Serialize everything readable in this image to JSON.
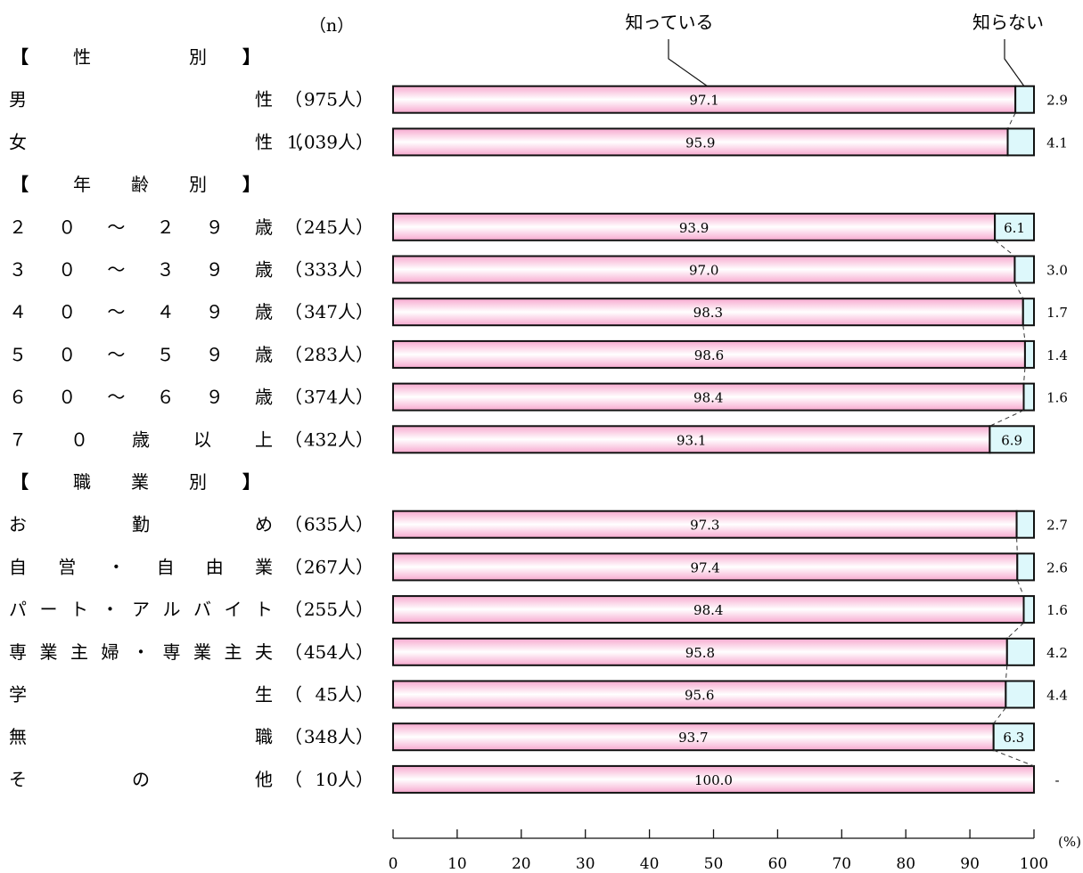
{
  "chart_data": {
    "type": "bar",
    "stacked": true,
    "orientation": "horizontal",
    "n_header": "（n）",
    "series_names": [
      "知っている",
      "知らない"
    ],
    "colors": {
      "know": "#f7a9cf",
      "know_light": "#ffffff",
      "dont": "#ddf8fb",
      "border": "#111111"
    },
    "x_axis": {
      "ticks": [
        0,
        10,
        20,
        30,
        40,
        50,
        60,
        70,
        80,
        90,
        100
      ],
      "unit": "(%)",
      "range": [
        0,
        100
      ]
    },
    "rows": [
      {
        "kind": "header",
        "label": "【性別】"
      },
      {
        "kind": "bar",
        "label": "男性",
        "n": "（ 975人）",
        "know": 97.1,
        "know_label": "97.1",
        "dont": 2.9,
        "dont_label": "2.9"
      },
      {
        "kind": "bar",
        "label": "女性",
        "n": "（1,039人）",
        "know": 95.9,
        "know_label": "95.9",
        "dont": 4.1,
        "dont_label": "4.1"
      },
      {
        "kind": "header",
        "label": "【年齢別】"
      },
      {
        "kind": "bar",
        "label": "２０～２９歳",
        "n": "（ 245人）",
        "know": 93.9,
        "know_label": "93.9",
        "dont": 6.1,
        "dont_label": "6.1"
      },
      {
        "kind": "bar",
        "label": "３０～３９歳",
        "n": "（ 333人）",
        "know": 97.0,
        "know_label": "97.0",
        "dont": 3.0,
        "dont_label": "3.0"
      },
      {
        "kind": "bar",
        "label": "４０～４９歳",
        "n": "（ 347人）",
        "know": 98.3,
        "know_label": "98.3",
        "dont": 1.7,
        "dont_label": "1.7"
      },
      {
        "kind": "bar",
        "label": "５０～５９歳",
        "n": "（ 283人）",
        "know": 98.6,
        "know_label": "98.6",
        "dont": 1.4,
        "dont_label": "1.4"
      },
      {
        "kind": "bar",
        "label": "６０～６９歳",
        "n": "（ 374人）",
        "know": 98.4,
        "know_label": "98.4",
        "dont": 1.6,
        "dont_label": "1.6"
      },
      {
        "kind": "bar",
        "label": "７０歳以上",
        "n": "（ 432人）",
        "know": 93.1,
        "know_label": "93.1",
        "dont": 6.9,
        "dont_label": "6.9"
      },
      {
        "kind": "header",
        "label": "【職業別】"
      },
      {
        "kind": "bar",
        "label": "お勤め",
        "n": "（ 635人）",
        "know": 97.3,
        "know_label": "97.3",
        "dont": 2.7,
        "dont_label": "2.7"
      },
      {
        "kind": "bar",
        "label": "自営・自由業",
        "n": "（ 267人）",
        "know": 97.4,
        "know_label": "97.4",
        "dont": 2.6,
        "dont_label": "2.6"
      },
      {
        "kind": "bar",
        "label": "パート・アルバイト",
        "n": "（ 255人）",
        "know": 98.4,
        "know_label": "98.4",
        "dont": 1.6,
        "dont_label": "1.6"
      },
      {
        "kind": "bar",
        "label": "専業主婦・専業主夫",
        "n": "（ 454人）",
        "know": 95.8,
        "know_label": "95.8",
        "dont": 4.2,
        "dont_label": "4.2"
      },
      {
        "kind": "bar",
        "label": "学生",
        "n": "（  45人）",
        "know": 95.6,
        "know_label": "95.6",
        "dont": 4.4,
        "dont_label": "4.4"
      },
      {
        "kind": "bar",
        "label": "無職",
        "n": "（ 348人）",
        "know": 93.7,
        "know_label": "93.7",
        "dont": 6.3,
        "dont_label": "6.3"
      },
      {
        "kind": "bar",
        "label": "その他",
        "n": "（  10人）",
        "know": 100.0,
        "know_label": "100.0",
        "dont": 0,
        "dont_label": "-"
      }
    ]
  }
}
